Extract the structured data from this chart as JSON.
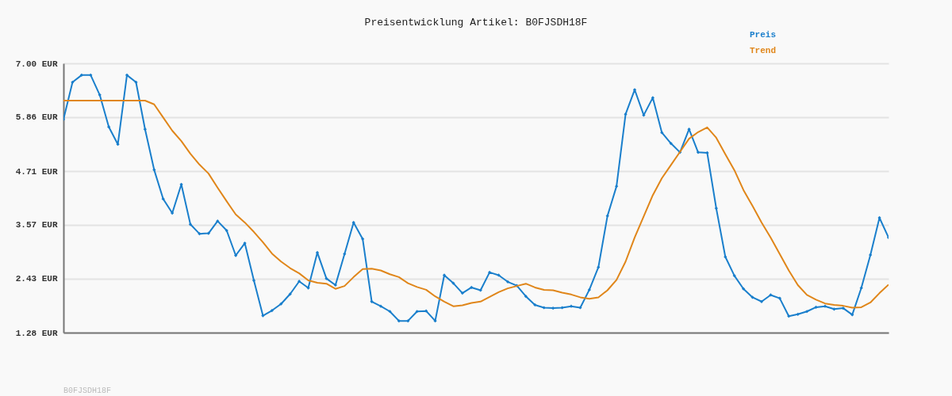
{
  "chart_data": {
    "type": "line",
    "title": "Preisentwicklung Artikel: B0FJSDH18F",
    "annotations": [
      "B0FJSDH18F"
    ],
    "categories": [
      null,
      null,
      null,
      null,
      null,
      null,
      null,
      null,
      null,
      null,
      null,
      null,
      null,
      null,
      null,
      null,
      null,
      null,
      null,
      null,
      null,
      null,
      null,
      null,
      null,
      null,
      null,
      null,
      null,
      null,
      null,
      null,
      null,
      null,
      null,
      null,
      null,
      null,
      null,
      null,
      null,
      null,
      null,
      null,
      null,
      null,
      null,
      null,
      null,
      null,
      null,
      null,
      null,
      null,
      null,
      null,
      null,
      null,
      null,
      null,
      null,
      null,
      null,
      null,
      null,
      null,
      null,
      null,
      null,
      null,
      null,
      null,
      null,
      null,
      null,
      null,
      null,
      null,
      null,
      null,
      null,
      null,
      null,
      null,
      null,
      null,
      null,
      null,
      null,
      null,
      null,
      null
    ],
    "series": [
      {
        "name": "Preis",
        "color": "#1a7fcc",
        "marker": "diamond",
        "values": [
          5.81,
          6.6,
          6.75,
          6.75,
          6.33,
          5.65,
          5.28,
          6.75,
          6.6,
          5.6,
          4.74,
          4.12,
          3.82,
          4.43,
          3.58,
          3.38,
          3.39,
          3.65,
          3.45,
          2.92,
          3.18,
          2.39,
          1.64,
          1.75,
          1.89,
          2.1,
          2.37,
          2.23,
          2.98,
          2.43,
          2.29,
          2.95,
          3.62,
          3.27,
          1.94,
          1.84,
          1.73,
          1.53,
          1.53,
          1.73,
          1.74,
          1.53,
          2.5,
          2.33,
          2.12,
          2.24,
          2.18,
          2.56,
          2.5,
          2.36,
          2.28,
          2.05,
          1.87,
          1.81,
          1.8,
          1.81,
          1.84,
          1.81,
          2.19,
          2.67,
          3.76,
          4.39,
          5.92,
          6.44,
          5.9,
          6.27,
          5.53,
          5.3,
          5.11,
          5.6,
          5.11,
          5.1,
          3.92,
          2.89,
          2.49,
          2.21,
          2.03,
          1.94,
          2.08,
          2.01,
          1.63,
          1.67,
          1.73,
          1.82,
          1.84,
          1.78,
          1.8,
          1.66,
          2.23,
          2.93,
          3.72,
          3.3
        ]
      },
      {
        "name": "Trend",
        "color": "#e0861a",
        "marker": "none",
        "values": [
          6.21,
          6.21,
          6.21,
          6.21,
          6.21,
          6.21,
          6.21,
          6.21,
          6.21,
          6.21,
          6.13,
          5.85,
          5.57,
          5.35,
          5.08,
          4.85,
          4.66,
          4.36,
          4.07,
          3.79,
          3.62,
          3.42,
          3.2,
          2.96,
          2.79,
          2.65,
          2.54,
          2.39,
          2.34,
          2.32,
          2.21,
          2.27,
          2.46,
          2.63,
          2.64,
          2.6,
          2.52,
          2.46,
          2.33,
          2.25,
          2.19,
          2.05,
          1.94,
          1.84,
          1.86,
          1.91,
          1.94,
          2.04,
          2.14,
          2.22,
          2.27,
          2.32,
          2.24,
          2.19,
          2.18,
          2.13,
          2.09,
          2.03,
          2.0,
          2.03,
          2.18,
          2.4,
          2.79,
          3.3,
          3.75,
          4.2,
          4.56,
          4.84,
          5.12,
          5.4,
          5.54,
          5.64,
          5.42,
          5.07,
          4.73,
          4.31,
          3.97,
          3.62,
          3.3,
          2.95,
          2.6,
          2.29,
          2.08,
          1.98,
          1.9,
          1.87,
          1.85,
          1.81,
          1.82,
          1.92,
          2.12,
          2.3
        ]
      }
    ],
    "ylim": [
      1.28,
      7.0
    ],
    "yticks": [
      {
        "value": 1.28,
        "label": "1.28 EUR"
      },
      {
        "value": 2.43,
        "label": "2.43 EUR"
      },
      {
        "value": 3.57,
        "label": "3.57 EUR"
      },
      {
        "value": 4.71,
        "label": "4.71 EUR"
      },
      {
        "value": 5.86,
        "label": "5.86 EUR"
      },
      {
        "value": 7.0,
        "label": "7.00 EUR"
      }
    ],
    "grid": "y",
    "legend": "top right",
    "tick_labels": "y"
  }
}
